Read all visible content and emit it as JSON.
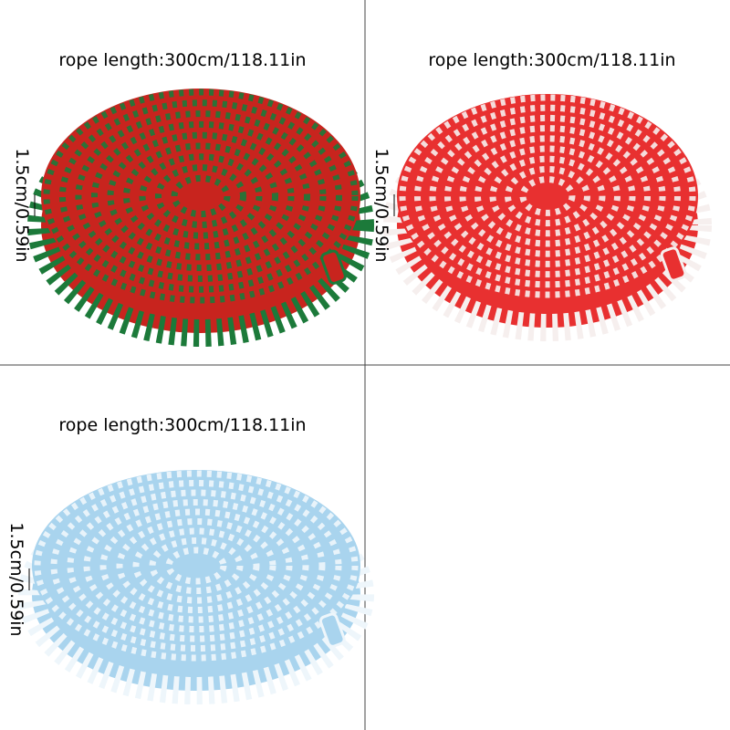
{
  "panels": [
    {
      "length_label": "rope length:300cm/118.11in",
      "width_label": "1.5cm/0.59in"
    },
    {
      "length_label": "rope length:300cm/118.11in",
      "width_label": "1.5cm/0.59in"
    },
    {
      "length_label": "rope length:300cm/118.11in",
      "width_label": "1.5cm/0.59in"
    }
  ]
}
